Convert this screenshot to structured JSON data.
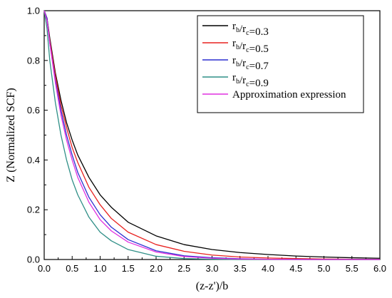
{
  "chart_data": {
    "type": "line",
    "xlabel": "(z-z')/b",
    "ylabel": "Z (Normalized SCF)",
    "xlim": [
      0,
      6.0
    ],
    "ylim": [
      0,
      1.0
    ],
    "x_ticks": [
      "0.0",
      "0.5",
      "1.0",
      "1.5",
      "2.0",
      "2.5",
      "3.0",
      "3.5",
      "4.0",
      "4.5",
      "5.0",
      "5.5",
      "6.0"
    ],
    "y_ticks": [
      "0.0",
      "0.2",
      "0.4",
      "0.6",
      "0.8",
      "1.0"
    ],
    "grid": false,
    "legend_position": "top-right",
    "series": [
      {
        "name": "rb/rc=0.3",
        "label_main": "r",
        "label_sub1": "b",
        "label_sep": "/r",
        "label_sub2": "c",
        "label_val": "=0.3",
        "color": "#000000",
        "x": [
          0,
          0.05,
          0.1,
          0.2,
          0.3,
          0.4,
          0.5,
          0.6,
          0.8,
          1.0,
          1.2,
          1.5,
          2.0,
          2.5,
          3.0,
          3.5,
          4.0,
          4.5,
          5.0,
          5.5,
          6.0
        ],
        "y": [
          1.0,
          0.97,
          0.89,
          0.75,
          0.64,
          0.55,
          0.48,
          0.42,
          0.33,
          0.26,
          0.21,
          0.15,
          0.095,
          0.06,
          0.04,
          0.028,
          0.02,
          0.014,
          0.01,
          0.007,
          0.005
        ]
      },
      {
        "name": "rb/rc=0.5",
        "label_main": "r",
        "label_sub1": "b",
        "label_sep": "/r",
        "label_sub2": "c",
        "label_val": "=0.5",
        "color": "#e8211f",
        "x": [
          0,
          0.05,
          0.1,
          0.2,
          0.3,
          0.4,
          0.5,
          0.6,
          0.8,
          1.0,
          1.2,
          1.5,
          2.0,
          2.5,
          3.0,
          3.5,
          4.0,
          4.5,
          5.0,
          5.5,
          6.0
        ],
        "y": [
          1.0,
          0.97,
          0.88,
          0.74,
          0.62,
          0.53,
          0.45,
          0.39,
          0.29,
          0.22,
          0.165,
          0.11,
          0.06,
          0.033,
          0.018,
          0.01,
          0.006,
          0.004,
          0.002,
          0.001,
          0.0005
        ]
      },
      {
        "name": "rb/rc=0.7",
        "label_main": "r",
        "label_sub1": "b",
        "label_sep": "/r",
        "label_sub2": "c",
        "label_val": "=0.7",
        "color": "#2b2fd1",
        "x": [
          0,
          0.05,
          0.1,
          0.2,
          0.3,
          0.4,
          0.5,
          0.6,
          0.8,
          1.0,
          1.2,
          1.5,
          2.0,
          2.5,
          3.0,
          3.5,
          4.0,
          4.5,
          5.0,
          5.5,
          6.0
        ],
        "y": [
          1.0,
          0.97,
          0.87,
          0.72,
          0.6,
          0.5,
          0.42,
          0.35,
          0.25,
          0.18,
          0.13,
          0.08,
          0.035,
          0.015,
          0.007,
          0.003,
          0.001,
          0.0005,
          0,
          0,
          0
        ]
      },
      {
        "name": "rb/rc=0.9",
        "label_main": "r",
        "label_sub1": "b",
        "label_sep": "/r",
        "label_sub2": "c",
        "label_val": "=0.9",
        "color": "#2f8f87",
        "x": [
          0,
          0.05,
          0.1,
          0.2,
          0.3,
          0.4,
          0.5,
          0.6,
          0.8,
          1.0,
          1.2,
          1.5,
          2.0,
          2.5,
          3.0,
          3.5,
          4.0,
          4.5,
          5.0,
          5.5,
          6.0
        ],
        "y": [
          1.0,
          0.93,
          0.8,
          0.63,
          0.5,
          0.4,
          0.32,
          0.26,
          0.17,
          0.11,
          0.075,
          0.04,
          0.013,
          0.004,
          0.001,
          0,
          0,
          0,
          0,
          0,
          0
        ]
      },
      {
        "name": "Approximation expression",
        "label_main": "Approximation expression",
        "label_sub1": "",
        "label_sep": "",
        "label_sub2": "",
        "label_val": "",
        "color": "#e030e0",
        "x": [
          0,
          0.05,
          0.1,
          0.2,
          0.3,
          0.4,
          0.5,
          0.6,
          0.8,
          1.0,
          1.2,
          1.5,
          2.0,
          2.5,
          3.0,
          3.5,
          4.0,
          4.5,
          5.0,
          5.5,
          6.0
        ],
        "y": [
          1.0,
          0.96,
          0.87,
          0.71,
          0.58,
          0.48,
          0.4,
          0.33,
          0.23,
          0.16,
          0.115,
          0.07,
          0.03,
          0.012,
          0.005,
          0.002,
          0.001,
          0,
          0,
          0,
          0
        ]
      }
    ]
  }
}
